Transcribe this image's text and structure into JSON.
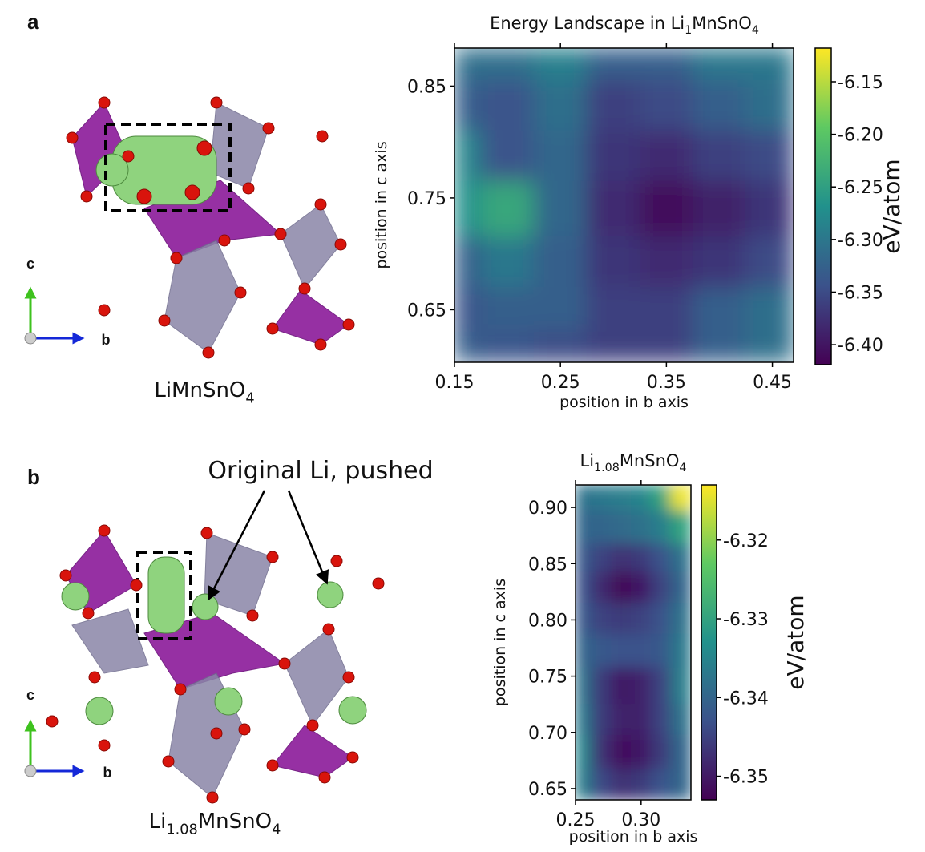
{
  "figure": {
    "panel_labels": [
      "a",
      "b"
    ],
    "structures": [
      {
        "caption": [
          {
            "text": "LiMnSnO"
          },
          {
            "text": "4",
            "sub": true
          }
        ]
      },
      {
        "caption": [
          {
            "text": "Li"
          },
          {
            "text": "1.08",
            "sub": true
          },
          {
            "text": "MnSnO"
          },
          {
            "text": "4",
            "sub": true
          }
        ]
      }
    ],
    "axis_labels": [
      "c",
      "b"
    ],
    "annotation": "Original Li, pushed"
  },
  "chart_data": [
    {
      "type": "heatmap",
      "title": [
        {
          "text": "Energy Landscape in Li"
        },
        {
          "text": "1",
          "sub": true
        },
        {
          "text": "MnSnO"
        },
        {
          "text": "4",
          "sub": true
        }
      ],
      "xlabel": "position in b axis",
      "ylabel": "position in c axis",
      "colormap": "viridis",
      "x": [
        0.15,
        0.2,
        0.25,
        0.3,
        0.35,
        0.4,
        0.45
      ],
      "y": [
        0.88,
        0.83,
        0.79,
        0.74,
        0.69,
        0.65,
        0.61
      ],
      "values": [
        [
          -6.31,
          -6.31,
          -6.29,
          -6.33,
          -6.33,
          -6.3,
          -6.3
        ],
        [
          -6.33,
          -6.34,
          -6.31,
          -6.36,
          -6.35,
          -6.33,
          -6.31
        ],
        [
          -6.28,
          -6.34,
          -6.32,
          -6.37,
          -6.38,
          -6.36,
          -6.35
        ],
        [
          -6.27,
          -6.24,
          -6.32,
          -6.38,
          -6.41,
          -6.39,
          -6.37
        ],
        [
          -6.33,
          -6.3,
          -6.33,
          -6.37,
          -6.38,
          -6.37,
          -6.35
        ],
        [
          -6.34,
          -6.33,
          -6.33,
          -6.36,
          -6.36,
          -6.33,
          -6.31
        ],
        [
          -6.33,
          -6.34,
          -6.35,
          -6.36,
          -6.36,
          -6.33,
          -6.31
        ]
      ],
      "xlim": [
        0.15,
        0.47
      ],
      "ylim": [
        0.603,
        0.884
      ],
      "xticks": [
        0.15,
        0.25,
        0.35,
        0.45
      ],
      "yticks": [
        0.65,
        0.75,
        0.85
      ],
      "colorbar": {
        "label": "eV/atom",
        "clim": [
          -6.419,
          -6.118
        ],
        "ticks": [
          -6.15,
          {
            "value": -6.2,
            "label": "-6.20"
          },
          -6.25,
          {
            "value": -6.3,
            "label": "-6.30"
          },
          -6.35,
          {
            "value": -6.4,
            "label": "-6.40"
          }
        ]
      }
    },
    {
      "type": "heatmap",
      "title": [
        {
          "text": "Li"
        },
        {
          "text": "1.08",
          "sub": true
        },
        {
          "text": "MnSnO"
        },
        {
          "text": "4",
          "sub": true
        }
      ],
      "xlabel": "position in b axis",
      "ylabel": "position in c axis",
      "colormap": "viridis",
      "x": [
        0.255,
        0.27,
        0.285,
        0.3,
        0.315,
        0.33
      ],
      "y": [
        0.915,
        0.88,
        0.855,
        0.83,
        0.8,
        0.775,
        0.74,
        0.71,
        0.685,
        0.65
      ],
      "values": [
        [
          -6.338,
          -6.337,
          -6.336,
          -6.335,
          -6.33,
          -6.314
        ],
        [
          -6.34,
          -6.34,
          -6.339,
          -6.338,
          -6.336,
          -6.33
        ],
        [
          -6.342,
          -6.345,
          -6.347,
          -6.346,
          -6.343,
          -6.338
        ],
        [
          -6.343,
          -6.348,
          -6.352,
          -6.35,
          -6.345,
          -6.34
        ],
        [
          -6.342,
          -6.345,
          -6.346,
          -6.345,
          -6.343,
          -6.338
        ],
        [
          -6.34,
          -6.342,
          -6.343,
          -6.343,
          -6.342,
          -6.337
        ],
        [
          -6.338,
          -6.346,
          -6.35,
          -6.349,
          -6.345,
          -6.336
        ],
        [
          -6.337,
          -6.346,
          -6.349,
          -6.349,
          -6.345,
          -6.338
        ],
        [
          -6.335,
          -6.347,
          -6.351,
          -6.35,
          -6.346,
          -6.34
        ],
        [
          -6.336,
          -6.344,
          -6.347,
          -6.346,
          -6.343,
          -6.34
        ]
      ],
      "xlim": [
        0.25,
        0.338
      ],
      "ylim": [
        0.64,
        0.92
      ],
      "xticks": [
        0.25,
        {
          "value": 0.3,
          "label": "0.30"
        }
      ],
      "yticks": [
        0.65,
        {
          "value": 0.7,
          "label": "0.70"
        },
        0.75,
        {
          "value": 0.8,
          "label": "0.80"
        },
        0.85,
        {
          "value": 0.9,
          "label": "0.90"
        }
      ],
      "colorbar": {
        "label": "eV/atom",
        "clim": [
          -6.353,
          -6.313
        ],
        "ticks": [
          -6.32,
          -6.33,
          -6.34,
          -6.35
        ]
      }
    }
  ]
}
